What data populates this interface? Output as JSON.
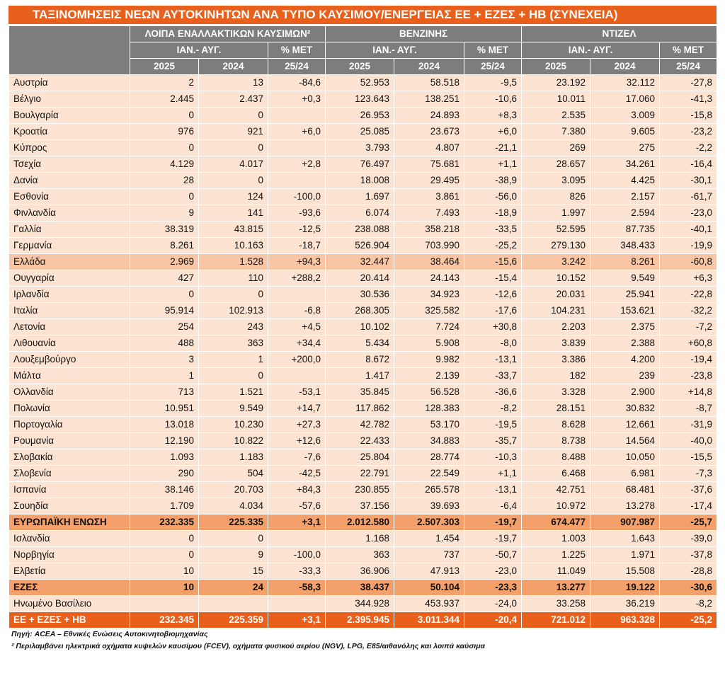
{
  "title": "ΤΑΞΙΝΟΜΗΣΕΙΣ ΝΕΩΝ ΑΥΤΟΚΙΝΗΤΩΝ ΑΝΑ ΤΥΠΟ ΚΑΥΣΙΜΟΥ/ΕΝΕΡΓΕΙΑΣ  ΕΕ + ΕΖΕΣ + ΗΒ (ΣΥΝΕΧΕΙΑ)",
  "groups": [
    {
      "name": "ΛΟΙΠΑ ΕΝΑΛΛΑΚΤΙΚΩΝ ΚΑΥΣΙΜΩΝ²",
      "period": "ΙΑΝ.- ΑΥΓ.",
      "change": "% ΜΕΤ",
      "years": [
        "2025",
        "2024",
        "25/24"
      ]
    },
    {
      "name": "ΒΕΝΖΙΝΗΣ",
      "period": "ΙΑΝ.- ΑΥΓ.",
      "change": "% ΜΕΤ",
      "years": [
        "2025",
        "2024",
        "25/24"
      ]
    },
    {
      "name": "ΝΤΙΖΕΛ",
      "period": "ΙΑΝ.- ΑΥΓ.",
      "change": "% ΜΕΤ",
      "years": [
        "2025",
        "2024",
        "25/24"
      ]
    }
  ],
  "rows": [
    {
      "cells": [
        "Αυστρία",
        "2",
        "13",
        "-84,6",
        "52.953",
        "58.518",
        "-9,5",
        "23.192",
        "32.112",
        "-27,8"
      ]
    },
    {
      "cells": [
        "Βέλγιο",
        "2.445",
        "2.437",
        "+0,3",
        "123.643",
        "138.251",
        "-10,6",
        "10.011",
        "17.060",
        "-41,3"
      ]
    },
    {
      "cells": [
        "Βουλγαρία",
        "0",
        "0",
        null,
        "26.953",
        "24.893",
        "+8,3",
        "2.535",
        "3.009",
        "-15,8"
      ]
    },
    {
      "cells": [
        "Κροατία",
        "976",
        "921",
        "+6,0",
        "25.085",
        "23.673",
        "+6,0",
        "7.380",
        "9.605",
        "-23,2"
      ]
    },
    {
      "cells": [
        "Κύπρος",
        "0",
        "0",
        null,
        "3.793",
        "4.807",
        "-21,1",
        "269",
        "275",
        "-2,2"
      ]
    },
    {
      "cells": [
        "Τσεχία",
        "4.129",
        "4.017",
        "+2,8",
        "76.497",
        "75.681",
        "+1,1",
        "28.657",
        "34.261",
        "-16,4"
      ]
    },
    {
      "cells": [
        "Δανία",
        "28",
        "0",
        null,
        "18.008",
        "29.495",
        "-38,9",
        "3.095",
        "4.425",
        "-30,1"
      ]
    },
    {
      "cells": [
        "Εσθονία",
        "0",
        "124",
        "-100,0",
        "1.697",
        "3.861",
        "-56,0",
        "826",
        "2.157",
        "-61,7"
      ]
    },
    {
      "cells": [
        "Φινλανδία",
        "9",
        "141",
        "-93,6",
        "6.074",
        "7.493",
        "-18,9",
        "1.997",
        "2.594",
        "-23,0"
      ]
    },
    {
      "cells": [
        "Γαλλία",
        "38.319",
        "43.815",
        "-12,5",
        "238.088",
        "358.218",
        "-33,5",
        "52.595",
        "87.735",
        "-40,1"
      ]
    },
    {
      "cells": [
        "Γερμανία",
        "8.261",
        "10.163",
        "-18,7",
        "526.904",
        "703.990",
        "-25,2",
        "279.130",
        "348.433",
        "-19,9"
      ]
    },
    {
      "cells": [
        "Ελλάδα",
        "2.969",
        "1.528",
        "+94,3",
        "32.447",
        "38.464",
        "-15,6",
        "3.242",
        "8.261",
        "-60,8"
      ],
      "style": "highlight"
    },
    {
      "cells": [
        "Ουγγαρία",
        "427",
        "110",
        "+288,2",
        "20.414",
        "24.143",
        "-15,4",
        "10.152",
        "9.549",
        "+6,3"
      ]
    },
    {
      "cells": [
        "Ιρλανδία",
        "0",
        "0",
        null,
        "30.536",
        "34.923",
        "-12,6",
        "20.031",
        "25.941",
        "-22,8"
      ]
    },
    {
      "cells": [
        "Ιταλία",
        "95.914",
        "102.913",
        "-6,8",
        "268.305",
        "325.582",
        "-17,6",
        "104.231",
        "153.621",
        "-32,2"
      ]
    },
    {
      "cells": [
        "Λετονία",
        "254",
        "243",
        "+4,5",
        "10.102",
        "7.724",
        "+30,8",
        "2.203",
        "2.375",
        "-7,2"
      ]
    },
    {
      "cells": [
        "Λιθουανία",
        "488",
        "363",
        "+34,4",
        "5.434",
        "5.908",
        "-8,0",
        "3.839",
        "2.388",
        "+60,8"
      ]
    },
    {
      "cells": [
        "Λουξεμβούργο",
        "3",
        "1",
        "+200,0",
        "8.672",
        "9.982",
        "-13,1",
        "3.386",
        "4.200",
        "-19,4"
      ]
    },
    {
      "cells": [
        "Μάλτα",
        "1",
        "0",
        null,
        "1.417",
        "2.139",
        "-33,7",
        "182",
        "239",
        "-23,8"
      ]
    },
    {
      "cells": [
        "Ολλανδία",
        "713",
        "1.521",
        "-53,1",
        "35.845",
        "56.528",
        "-36,6",
        "3.328",
        "2.900",
        "+14,8"
      ]
    },
    {
      "cells": [
        "Πολωνία",
        "10.951",
        "9.549",
        "+14,7",
        "117.862",
        "128.383",
        "-8,2",
        "28.151",
        "30.832",
        "-8,7"
      ]
    },
    {
      "cells": [
        "Πορτογαλία",
        "13.018",
        "10.230",
        "+27,3",
        "42.782",
        "53.170",
        "-19,5",
        "8.628",
        "12.661",
        "-31,9"
      ]
    },
    {
      "cells": [
        "Ρουμανία",
        "12.190",
        "10.822",
        "+12,6",
        "22.433",
        "34.883",
        "-35,7",
        "8.738",
        "14.564",
        "-40,0"
      ]
    },
    {
      "cells": [
        "Σλοβακία",
        "1.093",
        "1.183",
        "-7,6",
        "25.804",
        "28.774",
        "-10,3",
        "8.488",
        "10.050",
        "-15,5"
      ]
    },
    {
      "cells": [
        "Σλοβενία",
        "290",
        "504",
        "-42,5",
        "22.791",
        "22.549",
        "+1,1",
        "6.468",
        "6.981",
        "-7,3"
      ]
    },
    {
      "cells": [
        "Ισπανία",
        "38.146",
        "20.703",
        "+84,3",
        "230.855",
        "265.578",
        "-13,1",
        "42.751",
        "68.481",
        "-37,6"
      ]
    },
    {
      "cells": [
        "Σουηδία",
        "1.709",
        "4.034",
        "-57,6",
        "37.156",
        "39.693",
        "-6,4",
        "10.972",
        "13.278",
        "-17,4"
      ]
    },
    {
      "cells": [
        "ΕΥΡΩΠΑΪΚΗ ΕΝΩΣΗ",
        "232.335",
        "225.335",
        "+3,1",
        "2.012.580",
        "2.507.303",
        "-19,7",
        "674.477",
        "907.987",
        "-25,7"
      ],
      "style": "total"
    },
    {
      "cells": [
        "Ισλανδία",
        "0",
        "0",
        null,
        "1.168",
        "1.454",
        "-19,7",
        "1.003",
        "1.643",
        "-39,0"
      ]
    },
    {
      "cells": [
        "Νορβηγία",
        "0",
        "9",
        "-100,0",
        "363",
        "737",
        "-50,7",
        "1.225",
        "1.971",
        "-37,8"
      ]
    },
    {
      "cells": [
        "Ελβετία",
        "10",
        "15",
        "-33,3",
        "36.906",
        "47.913",
        "-23,0",
        "11.049",
        "15.508",
        "-28,8"
      ]
    },
    {
      "cells": [
        "ΕΖΕΣ",
        "10",
        "24",
        "-58,3",
        "38.437",
        "50.104",
        "-23,3",
        "13.277",
        "19.122",
        "-30,6"
      ],
      "style": "total"
    },
    {
      "cells": [
        "Ηνωμένο Βασίλειο",
        null,
        null,
        null,
        "344.928",
        "453.937",
        "-24,0",
        "33.258",
        "36.219",
        "-8,2"
      ]
    },
    {
      "cells": [
        "ΕΕ + ΕΖΕΣ + ΗΒ",
        "232.345",
        "225.359",
        "+3,1",
        "2.395.945",
        "3.011.344",
        "-20,4",
        "721.012",
        "963.328",
        "-25,2"
      ],
      "style": "grand"
    }
  ],
  "notes": [
    "Πηγή: ACEA – Εθνικές Ενώσεις Αυτοκινητοβιομηχανίας",
    "² Περιλαμβάνει ηλεκτρικά οχήματα κυψελών καυσίμου (FCEV), οχήματα φυσικού αερίου (NGV), LPG, E85/αιθανόλης και λοιπά καύσιμα"
  ]
}
